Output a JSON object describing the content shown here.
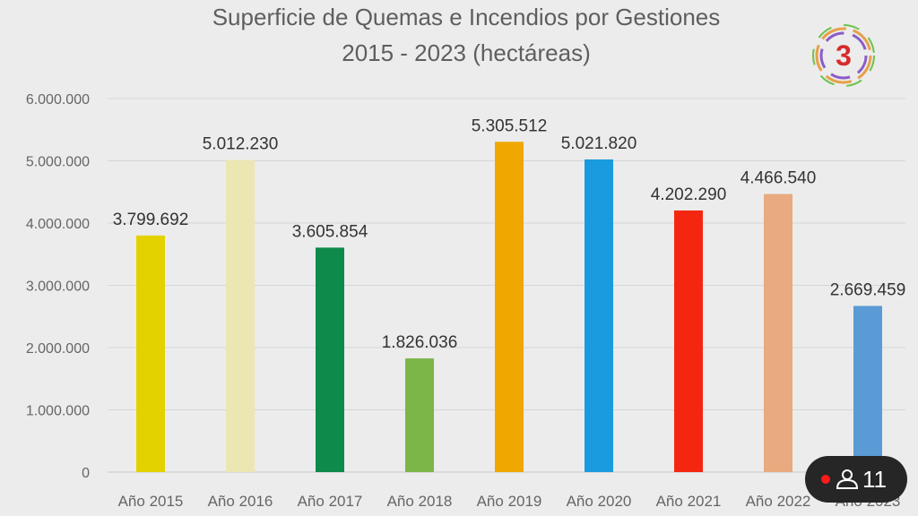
{
  "chart_data": {
    "type": "bar",
    "title": "Superficie de Quemas e Incendios por Gestiones",
    "subtitle": "2015 - 2023 (hectáreas)",
    "categories": [
      "Año 2015",
      "Año 2016",
      "Año 2017",
      "Año 2018",
      "Año 2019",
      "Año 2020",
      "Año 2021",
      "Año 2022",
      "Año 2023"
    ],
    "values": [
      3799692,
      5012230,
      3605854,
      1826036,
      5305512,
      5021820,
      4202290,
      4466540,
      2669459
    ],
    "data_labels": [
      "3.799.692",
      "5.012.230",
      "3.605.854",
      "1.826.036",
      "5.305.512",
      "5.021.820",
      "4.202.290",
      "4.466.540",
      "2.669.459"
    ],
    "colors": [
      "#e3d200",
      "#ece6b2",
      "#0e8a4b",
      "#7cb548",
      "#f0a700",
      "#1a9be0",
      "#f5260f",
      "#e8aa7e",
      "#5b9bd5"
    ],
    "ylim": [
      0,
      6000000
    ],
    "yticks": [
      0,
      1000000,
      2000000,
      3000000,
      4000000,
      5000000,
      6000000
    ],
    "ytick_labels": [
      "0",
      "1.000.000",
      "2.000.000",
      "3.000.000",
      "4.000.000",
      "5.000.000",
      "6.000.000"
    ],
    "grid": true,
    "xlabel": "",
    "ylabel": ""
  },
  "overlay": {
    "viewer_count": "11",
    "live_color": "#ff1a1a",
    "icon": "person-icon"
  },
  "logo": {
    "text": "3"
  }
}
